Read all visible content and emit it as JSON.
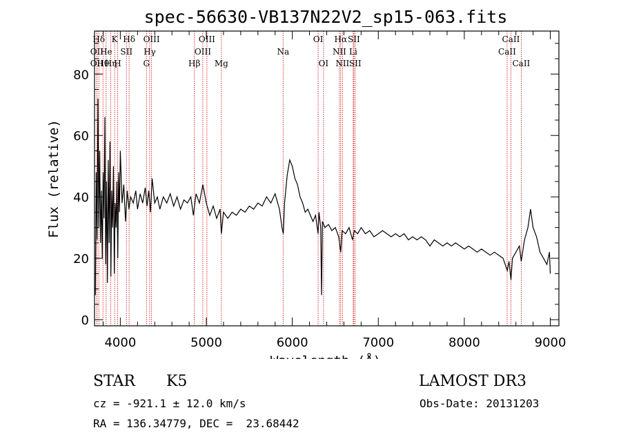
{
  "chart_data": {
    "type": "line",
    "title": "spec-56630-VB137N22V2_sp15-063.fits",
    "xlabel": "Wavelength (Å)",
    "ylabel": "Flux (relative)",
    "xlim": [
      3700,
      9100
    ],
    "ylim": [
      -2,
      94
    ],
    "x_ticks": [
      {
        "value": 4000,
        "label": "4000"
      },
      {
        "value": 5000,
        "label": "5000"
      },
      {
        "value": 6000,
        "label": "6000"
      },
      {
        "value": 7000,
        "label": "7000"
      },
      {
        "value": 8000,
        "label": "8000"
      },
      {
        "value": 9000,
        "label": "9000"
      }
    ],
    "y_ticks": [
      {
        "value": 0,
        "label": "0"
      },
      {
        "value": 20,
        "label": "20"
      },
      {
        "value": 40,
        "label": "40"
      },
      {
        "value": 60,
        "label": "60"
      },
      {
        "value": 80,
        "label": "80"
      }
    ],
    "grid": false,
    "line_color": "#000000",
    "marker_color": "#cc0000",
    "spectral_lines": [
      {
        "label": "OII",
        "wavelength": 3727,
        "row": 1
      },
      {
        "label": "OII",
        "wavelength": 3727,
        "row": 2
      },
      {
        "label": "Hθ",
        "wavelength": 3798,
        "row": 2
      },
      {
        "label": "Hδ",
        "wavelength": 3750,
        "row": 0
      },
      {
        "label": "He",
        "wavelength": 3835,
        "row": 1
      },
      {
        "label": "Hη",
        "wavelength": 3889,
        "row": 2
      },
      {
        "label": "K",
        "wavelength": 3934,
        "row": 0
      },
      {
        "label": "H",
        "wavelength": 3969,
        "row": 2
      },
      {
        "label": "SII",
        "wavelength": 4071,
        "row": 1
      },
      {
        "label": "Hδ",
        "wavelength": 4102,
        "row": 0
      },
      {
        "label": "G",
        "wavelength": 4304,
        "row": 2
      },
      {
        "label": "Hγ",
        "wavelength": 4341,
        "row": 1
      },
      {
        "label": "OIII",
        "wavelength": 4363,
        "row": 0
      },
      {
        "label": "Hβ",
        "wavelength": 4861,
        "row": 2
      },
      {
        "label": "OIII",
        "wavelength": 4959,
        "row": 1
      },
      {
        "label": "OIII",
        "wavelength": 5007,
        "row": 0
      },
      {
        "label": "Mg",
        "wavelength": 5175,
        "row": 2
      },
      {
        "label": "Na",
        "wavelength": 5893,
        "row": 1
      },
      {
        "label": "OI",
        "wavelength": 6300,
        "row": 0
      },
      {
        "label": "OI",
        "wavelength": 6363,
        "row": 2
      },
      {
        "label": "NII",
        "wavelength": 6548,
        "row": 1
      },
      {
        "label": "Hα",
        "wavelength": 6563,
        "row": 0
      },
      {
        "label": "NII",
        "wavelength": 6583,
        "row": 2
      },
      {
        "label": "Li",
        "wavelength": 6708,
        "row": 1
      },
      {
        "label": "SII",
        "wavelength": 6716,
        "row": 0
      },
      {
        "label": "SII",
        "wavelength": 6731,
        "row": 2
      },
      {
        "label": "CaII",
        "wavelength": 8498,
        "row": 1
      },
      {
        "label": "CaII",
        "wavelength": 8542,
        "row": 0
      },
      {
        "label": "CaII",
        "wavelength": 8662,
        "row": 2
      }
    ],
    "series": [
      {
        "values_note_points": [
          [
            3710,
            8
          ],
          [
            3720,
            48
          ],
          [
            3730,
            26
          ],
          [
            3740,
            72
          ],
          [
            3750,
            30
          ],
          [
            3760,
            55
          ],
          [
            3770,
            25
          ],
          [
            3780,
            42
          ],
          [
            3790,
            20
          ],
          [
            3800,
            48
          ],
          [
            3810,
            33
          ],
          [
            3820,
            66
          ],
          [
            3830,
            18
          ],
          [
            3840,
            45
          ],
          [
            3850,
            12
          ],
          [
            3860,
            52
          ],
          [
            3870,
            25
          ],
          [
            3880,
            58
          ],
          [
            3890,
            14
          ],
          [
            3900,
            42
          ],
          [
            3910,
            30
          ],
          [
            3920,
            50
          ],
          [
            3930,
            15
          ],
          [
            3940,
            38
          ],
          [
            3950,
            30
          ],
          [
            3960,
            45
          ],
          [
            3970,
            20
          ],
          [
            3980,
            48
          ],
          [
            3990,
            35
          ],
          [
            4000,
            55
          ],
          [
            4020,
            38
          ],
          [
            4040,
            44
          ],
          [
            4060,
            32
          ],
          [
            4080,
            42
          ],
          [
            4100,
            36
          ],
          [
            4120,
            40
          ],
          [
            4150,
            38
          ],
          [
            4180,
            42
          ],
          [
            4200,
            36
          ],
          [
            4230,
            41
          ],
          [
            4260,
            38
          ],
          [
            4290,
            43
          ],
          [
            4310,
            37
          ],
          [
            4330,
            42
          ],
          [
            4350,
            35
          ],
          [
            4370,
            46
          ],
          [
            4400,
            38
          ],
          [
            4430,
            40
          ],
          [
            4460,
            36
          ],
          [
            4500,
            40
          ],
          [
            4540,
            38
          ],
          [
            4580,
            41
          ],
          [
            4620,
            37
          ],
          [
            4660,
            40
          ],
          [
            4700,
            36
          ],
          [
            4740,
            39
          ],
          [
            4780,
            38
          ],
          [
            4820,
            40
          ],
          [
            4850,
            34
          ],
          [
            4880,
            41
          ],
          [
            4920,
            38
          ],
          [
            4960,
            44
          ],
          [
            5000,
            38
          ],
          [
            5040,
            34
          ],
          [
            5080,
            37
          ],
          [
            5120,
            33
          ],
          [
            5160,
            36
          ],
          [
            5175,
            28
          ],
          [
            5200,
            35
          ],
          [
            5250,
            33
          ],
          [
            5300,
            35
          ],
          [
            5350,
            34
          ],
          [
            5400,
            36
          ],
          [
            5450,
            35
          ],
          [
            5500,
            37
          ],
          [
            5550,
            36
          ],
          [
            5600,
            38
          ],
          [
            5650,
            37
          ],
          [
            5700,
            40
          ],
          [
            5750,
            38
          ],
          [
            5800,
            41
          ],
          [
            5850,
            36
          ],
          [
            5880,
            30
          ],
          [
            5895,
            28
          ],
          [
            5910,
            38
          ],
          [
            5940,
            47
          ],
          [
            5970,
            52
          ],
          [
            6000,
            50
          ],
          [
            6030,
            46
          ],
          [
            6060,
            44
          ],
          [
            6090,
            40
          ],
          [
            6120,
            38
          ],
          [
            6150,
            35
          ],
          [
            6180,
            36
          ],
          [
            6210,
            34
          ],
          [
            6240,
            32
          ],
          [
            6270,
            34
          ],
          [
            6300,
            28
          ],
          [
            6310,
            35
          ],
          [
            6330,
            30
          ],
          [
            6340,
            8
          ],
          [
            6350,
            32
          ],
          [
            6380,
            30
          ],
          [
            6420,
            31
          ],
          [
            6460,
            29
          ],
          [
            6500,
            30
          ],
          [
            6540,
            27
          ],
          [
            6563,
            22
          ],
          [
            6580,
            29
          ],
          [
            6620,
            28
          ],
          [
            6660,
            30
          ],
          [
            6700,
            26
          ],
          [
            6720,
            29
          ],
          [
            6760,
            28
          ],
          [
            6800,
            30
          ],
          [
            6850,
            28
          ],
          [
            6900,
            29
          ],
          [
            6950,
            27
          ],
          [
            7000,
            28
          ],
          [
            7050,
            29
          ],
          [
            7100,
            28
          ],
          [
            7150,
            27
          ],
          [
            7200,
            28
          ],
          [
            7250,
            27
          ],
          [
            7300,
            28
          ],
          [
            7350,
            26
          ],
          [
            7400,
            27
          ],
          [
            7450,
            26
          ],
          [
            7500,
            27
          ],
          [
            7550,
            26
          ],
          [
            7600,
            24
          ],
          [
            7650,
            26
          ],
          [
            7700,
            25
          ],
          [
            7750,
            24
          ],
          [
            7800,
            25
          ],
          [
            7850,
            24
          ],
          [
            7900,
            25
          ],
          [
            7950,
            24
          ],
          [
            8000,
            23
          ],
          [
            8050,
            24
          ],
          [
            8100,
            23
          ],
          [
            8150,
            22
          ],
          [
            8200,
            23
          ],
          [
            8250,
            22
          ],
          [
            8300,
            21
          ],
          [
            8350,
            22
          ],
          [
            8400,
            21
          ],
          [
            8450,
            20
          ],
          [
            8500,
            16
          ],
          [
            8520,
            19
          ],
          [
            8542,
            13
          ],
          [
            8560,
            20
          ],
          [
            8600,
            22
          ],
          [
            8640,
            24
          ],
          [
            8662,
            19
          ],
          [
            8700,
            26
          ],
          [
            8740,
            30
          ],
          [
            8770,
            36
          ],
          [
            8800,
            30
          ],
          [
            8840,
            27
          ],
          [
            8880,
            22
          ],
          [
            8920,
            20
          ],
          [
            8960,
            18
          ],
          [
            8990,
            22
          ],
          [
            9000,
            15
          ]
        ]
      }
    ]
  },
  "info": {
    "object_class": "STAR",
    "subclass": "K5",
    "survey": "LAMOST DR3",
    "velocity": "cz = -921.1 ± 12.0 km/s",
    "obs_date": "Obs-Date: 20131203",
    "coords": "RA = 136.34779, DEC =  23.68442"
  }
}
